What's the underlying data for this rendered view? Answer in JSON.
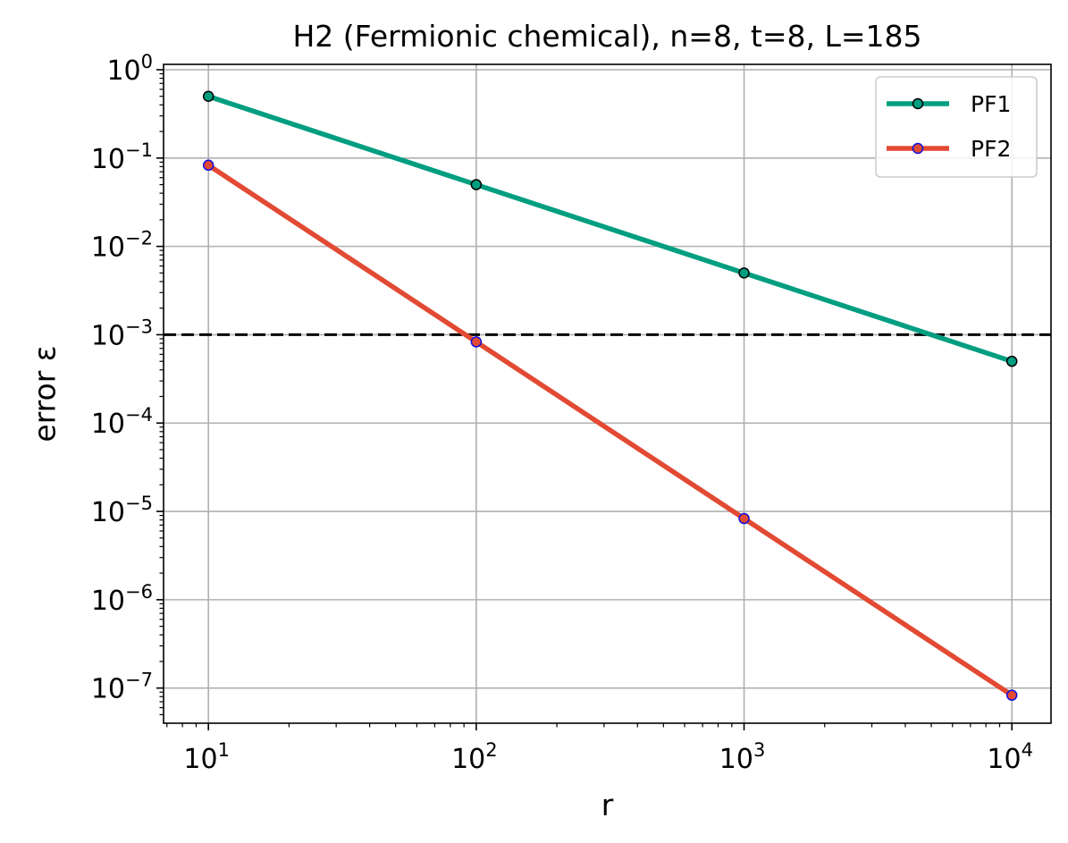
{
  "chart_data": {
    "type": "line",
    "title": "H2 (Fermionic chemical), n=8, t=8, L=185",
    "xlabel": "r",
    "ylabel": "error ε",
    "xscale": "log",
    "yscale": "log",
    "xlim": [
      6.8,
      14000
    ],
    "ylim": [
      4e-08,
      1.15
    ],
    "grid": true,
    "legend_position": "top-right",
    "x": [
      10,
      100,
      1000,
      10000
    ],
    "xticks": [
      {
        "value": 10,
        "base": "10",
        "exp": "1"
      },
      {
        "value": 100,
        "base": "10",
        "exp": "2"
      },
      {
        "value": 1000,
        "base": "10",
        "exp": "3"
      },
      {
        "value": 10000,
        "base": "10",
        "exp": "4"
      }
    ],
    "yticks": [
      {
        "value": 1,
        "base": "10",
        "exp": "0"
      },
      {
        "value": 0.1,
        "base": "10",
        "exp": "−1"
      },
      {
        "value": 0.01,
        "base": "10",
        "exp": "−2"
      },
      {
        "value": 0.001,
        "base": "10",
        "exp": "−3"
      },
      {
        "value": 0.0001,
        "base": "10",
        "exp": "−4"
      },
      {
        "value": 1e-05,
        "base": "10",
        "exp": "−5"
      },
      {
        "value": 1e-06,
        "base": "10",
        "exp": "−6"
      },
      {
        "value": 1e-07,
        "base": "10",
        "exp": "−7"
      }
    ],
    "series": [
      {
        "name": "PF1",
        "color": "#009e80",
        "marker_face": "#009e80",
        "marker_edge": "#000000",
        "values": [
          0.5,
          0.05,
          0.005,
          0.0005
        ]
      },
      {
        "name": "PF2",
        "color": "#e24a33",
        "marker_face": "#e24a33",
        "marker_edge": "#1010e0",
        "values": [
          0.083,
          0.00083,
          8.3e-06,
          8.3e-08
        ]
      }
    ],
    "reference_lines": [
      {
        "type": "horizontal",
        "y": 0.001,
        "color": "#000000",
        "style": "dashed"
      }
    ]
  }
}
